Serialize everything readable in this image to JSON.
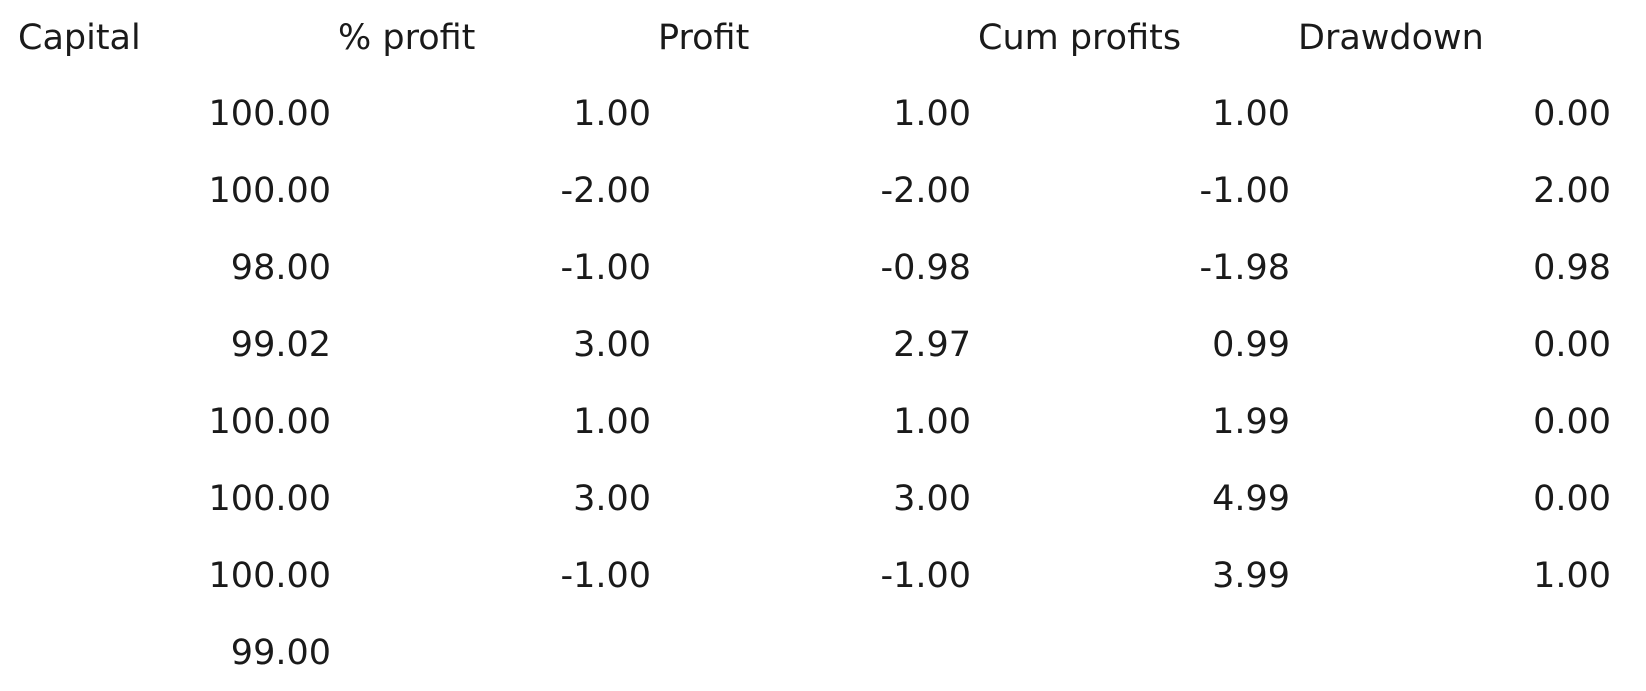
{
  "table": {
    "headers": [
      "Capital",
      "% profit",
      "Profit",
      "Cum profits",
      "Drawdown"
    ],
    "rows": [
      [
        "100.00",
        "1.00",
        "1.00",
        "1.00",
        "0.00"
      ],
      [
        "100.00",
        "-2.00",
        "-2.00",
        "-1.00",
        "2.00"
      ],
      [
        "98.00",
        "-1.00",
        "-0.98",
        "-1.98",
        "0.98"
      ],
      [
        "99.02",
        "3.00",
        "2.97",
        "0.99",
        "0.00"
      ],
      [
        "100.00",
        "1.00",
        "1.00",
        "1.99",
        "0.00"
      ],
      [
        "100.00",
        "3.00",
        "3.00",
        "4.99",
        "0.00"
      ],
      [
        "100.00",
        "-1.00",
        "-1.00",
        "3.99",
        "1.00"
      ],
      [
        "99.00",
        "",
        "",
        "",
        ""
      ]
    ]
  }
}
